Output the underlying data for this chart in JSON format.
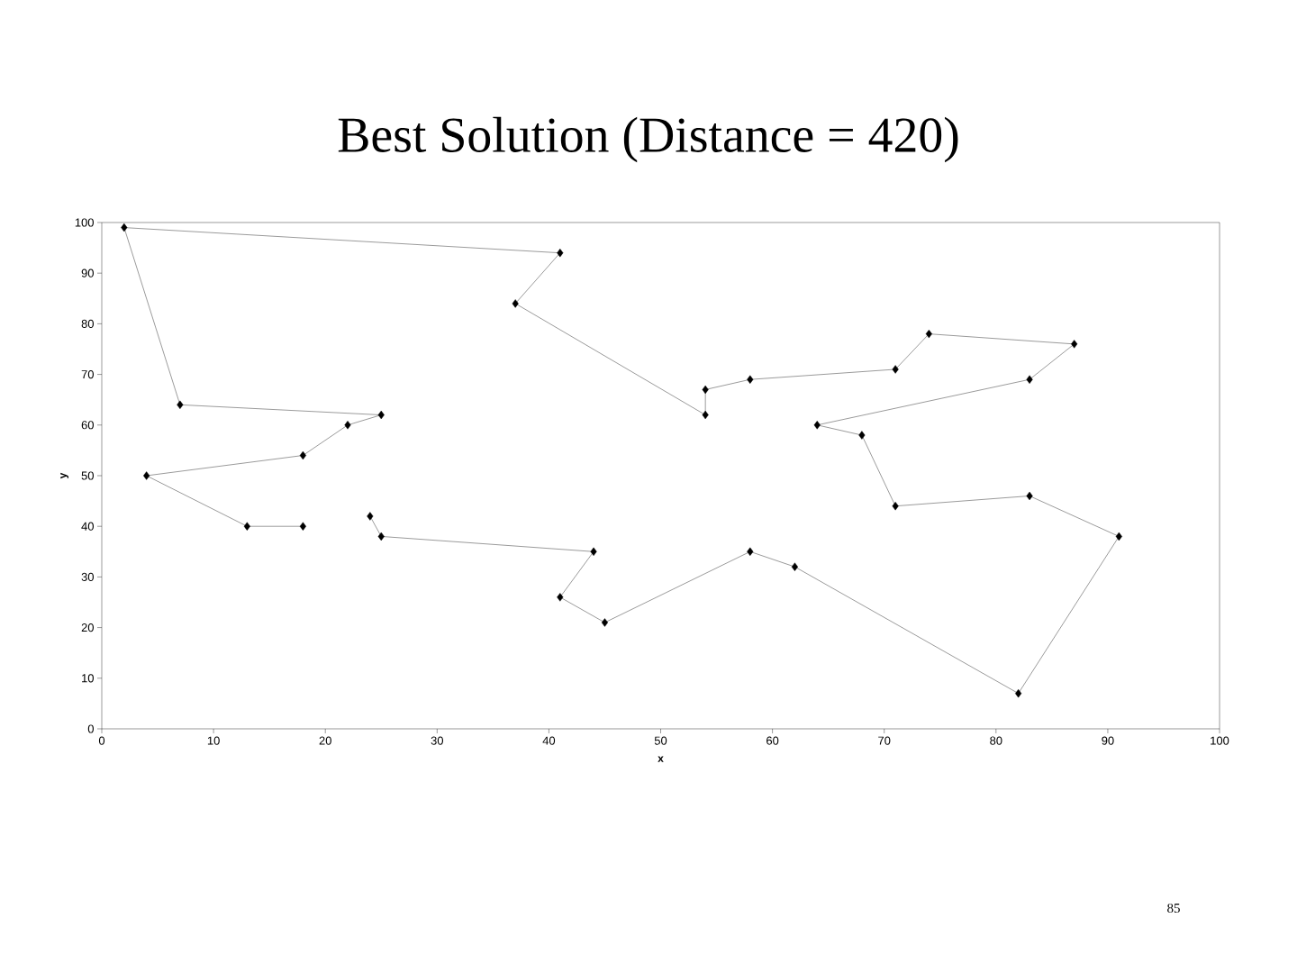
{
  "chart_data": {
    "type": "line",
    "title": "Best Solution (Distance = 420)",
    "xlabel": "x",
    "ylabel": "y",
    "annotations": [
      "85"
    ],
    "x": [
      18,
      13,
      4,
      18,
      22,
      25,
      7,
      2,
      41,
      37,
      54,
      54,
      58,
      71,
      74,
      87,
      83,
      64,
      68,
      71,
      83,
      91,
      82,
      62,
      58,
      45,
      41,
      44,
      25,
      24
    ],
    "series": [
      {
        "color": "#000000",
        "values": [
          40,
          40,
          50,
          54,
          60,
          62,
          64,
          99,
          94,
          84,
          62,
          67,
          69,
          71,
          78,
          76,
          69,
          60,
          58,
          44,
          46,
          38,
          7,
          32,
          35,
          21,
          26,
          35,
          38,
          42
        ]
      }
    ],
    "xlim": [
      0,
      100
    ],
    "ylim": [
      0,
      100
    ],
    "xticks": [
      0,
      10,
      20,
      30,
      40,
      50,
      60,
      70,
      80,
      90,
      100
    ],
    "yticks": [
      0,
      10,
      20,
      30,
      40,
      50,
      60,
      70,
      80,
      90,
      100
    ],
    "marker": "diamond",
    "line_style": "solid",
    "grid": false
  }
}
